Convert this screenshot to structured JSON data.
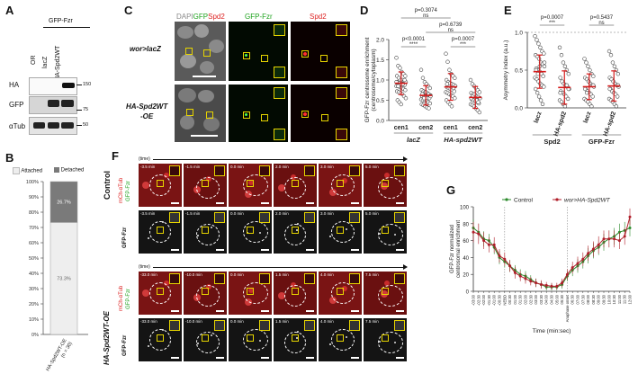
{
  "panels": {
    "A": {
      "label": "A",
      "group_header": "GFP-Fzr",
      "lanes": [
        "OR",
        "lacZ",
        "HA-Spd2WT"
      ],
      "rows": [
        "HA",
        "GFP",
        "αTub"
      ],
      "mw_markers": [
        "150",
        "75",
        "50"
      ]
    },
    "B": {
      "label": "B",
      "legend": [
        "Attached",
        "Detached"
      ],
      "xlabel": "HA-Spd2WT-OE\n(n = 30)",
      "xlabel_line1": "HA-Spd2WT-OE",
      "xlabel_line2": "(n = 30)",
      "yticks": [
        "0%",
        "10%",
        "20%",
        "30%",
        "40%",
        "50%",
        "60%",
        "70%",
        "80%",
        "90%",
        "100%"
      ],
      "colors": {
        "attached": "#eeeeee",
        "detached": "#7a7a7a"
      }
    },
    "C": {
      "label": "C",
      "header_merge_parts": [
        "DAPI",
        "GFP",
        "Spd2"
      ],
      "header_gfp": "GFP-Fzr",
      "header_spd2": "Spd2",
      "row1_label": "wor>lacZ",
      "row2_label_line1": "HA-Spd2WT",
      "row2_label_line2": "-OE"
    },
    "D": {
      "label": "D",
      "ylabel": "GFP-Fzr centrosome enrichment",
      "ylabel2": "(centrosome/cytoplasm)",
      "groups": [
        "lacZ",
        "HA-spd2WT"
      ],
      "comparisons": [
        {
          "text": "p=0.3074",
          "sig": "ns"
        },
        {
          "text": "p=0.6739",
          "sig": "ns"
        },
        {
          "text": "p<0.0001",
          "sig": "****"
        },
        {
          "text": "p=0.0007",
          "sig": "***"
        }
      ]
    },
    "E": {
      "label": "E",
      "ylabel": "Asymmetry index (a.u.)",
      "groups": [
        "Spd2",
        "GFP-Fzr"
      ],
      "comparisons": [
        {
          "text": "p=0.0007",
          "sig": "***"
        },
        {
          "text": "p=0.5437",
          "sig": "ns"
        }
      ]
    },
    "F": {
      "label": "F",
      "time_label": "(time)",
      "row_labels": [
        "Control",
        "HA-Spd2WT-OE"
      ],
      "channel_mch": "mCh-αTub",
      "channel_gfp": "GFP-Fzr",
      "channel_gfp_alone": "GFP-Fzr",
      "times_control": [
        "-3.5 min",
        "-1.5 min",
        "0.0 min",
        "2.0 min",
        "3.0 min",
        "5.0 min"
      ],
      "times_oe": [
        "-33.0 min",
        "-10.0 min",
        "0.0 min",
        "1.5 min",
        "4.0 min",
        "7.5 min"
      ]
    },
    "G": {
      "label": "G",
      "ylabel": "GFP-Fzr normalized",
      "ylabel2": "centrosomal enrichment",
      "xlabel": "Time (min:sec)",
      "legend": [
        "Control",
        "wor>HA-Spd2WT"
      ],
      "annotations": [
        "NEBD",
        "Anaphase onset"
      ]
    }
  },
  "chart_data": [
    {
      "id": "B",
      "type": "bar",
      "categories": [
        "HA-Spd2WT-OE\n(n = 30)"
      ],
      "series": [
        {
          "name": "Attached",
          "values": [
            73.3
          ]
        },
        {
          "name": "Detached",
          "values": [
            26.7
          ]
        }
      ],
      "stacked": true,
      "ylim": [
        0,
        100
      ],
      "data_labels": [
        "73.3%",
        "26.7%"
      ]
    },
    {
      "id": "D",
      "type": "scatter",
      "ylabel": "GFP-Fzr centrosome enrichment\n(centrosome/cytoplasm)",
      "ylim": [
        0,
        2.0
      ],
      "yticks": [
        "0.0",
        "0.5",
        "1.0",
        "1.5",
        "2.0"
      ],
      "categories": [
        "cen1",
        "cen2",
        "cen1",
        "cen2"
      ],
      "group_labels": [
        "lacZ",
        "HA-spd2WT"
      ],
      "means": [
        0.92,
        0.62,
        0.83,
        0.57
      ],
      "sd": [
        0.28,
        0.24,
        0.33,
        0.27
      ],
      "points": [
        [
          1.55,
          1.35,
          1.3,
          1.2,
          1.15,
          1.1,
          1.1,
          1.05,
          1.0,
          1.0,
          0.98,
          0.95,
          0.95,
          0.92,
          0.9,
          0.9,
          0.88,
          0.85,
          0.85,
          0.82,
          0.8,
          0.78,
          0.75,
          0.72,
          0.7,
          0.68,
          0.65,
          0.6,
          0.55,
          0.5,
          0.45,
          0.4,
          0.9,
          1.0,
          0.95,
          0.85
        ],
        [
          1.25,
          1.05,
          0.95,
          0.9,
          0.85,
          0.8,
          0.75,
          0.72,
          0.7,
          0.68,
          0.65,
          0.62,
          0.6,
          0.6,
          0.58,
          0.55,
          0.55,
          0.52,
          0.5,
          0.5,
          0.48,
          0.45,
          0.42,
          0.4,
          0.38,
          0.35,
          0.32,
          0.3,
          0.6,
          0.65,
          0.55,
          0.7
        ],
        [
          1.65,
          1.45,
          1.25,
          1.15,
          1.1,
          1.05,
          1.0,
          0.95,
          0.92,
          0.9,
          0.88,
          0.85,
          0.82,
          0.8,
          0.78,
          0.75,
          0.72,
          0.7,
          0.68,
          0.65,
          0.62,
          0.6,
          0.55,
          0.5,
          0.45,
          0.4,
          0.35,
          0.8,
          0.85,
          0.9
        ],
        [
          1.0,
          0.9,
          0.85,
          0.8,
          0.75,
          0.7,
          0.68,
          0.65,
          0.62,
          0.6,
          0.58,
          0.55,
          0.52,
          0.5,
          0.48,
          0.45,
          0.42,
          0.4,
          0.38,
          0.35,
          0.3,
          0.25,
          0.2,
          0.55,
          0.6,
          0.65,
          0.5,
          0.45
        ]
      ]
    },
    {
      "id": "E",
      "type": "scatter",
      "ylabel": "Asymmetry index (a.u.)",
      "ylim": [
        0,
        1.0
      ],
      "yticks": [
        "0.0",
        "0.5",
        "1.0"
      ],
      "categories": [
        "lacz",
        "HA-spd2",
        "lacz",
        "HA-spd2"
      ],
      "group_labels": [
        "Spd2",
        "GFP-Fzr"
      ],
      "means": [
        0.48,
        0.27,
        0.28,
        0.29
      ],
      "sd": [
        0.22,
        0.22,
        0.17,
        0.2
      ],
      "points": [
        [
          0.95,
          0.9,
          0.85,
          0.8,
          0.75,
          0.72,
          0.7,
          0.68,
          0.65,
          0.6,
          0.58,
          0.55,
          0.52,
          0.5,
          0.48,
          0.45,
          0.42,
          0.4,
          0.38,
          0.35,
          0.32,
          0.3,
          0.28,
          0.25,
          0.2,
          0.15,
          0.1,
          0.05,
          0.6,
          0.5,
          0.45,
          0.55
        ],
        [
          0.8,
          0.7,
          0.6,
          0.55,
          0.5,
          0.45,
          0.4,
          0.35,
          0.32,
          0.3,
          0.28,
          0.25,
          0.22,
          0.2,
          0.18,
          0.15,
          0.12,
          0.1,
          0.08,
          0.05,
          0.02,
          0.3,
          0.25,
          0.2
        ],
        [
          0.65,
          0.6,
          0.55,
          0.5,
          0.45,
          0.42,
          0.4,
          0.38,
          0.35,
          0.32,
          0.3,
          0.28,
          0.25,
          0.22,
          0.2,
          0.18,
          0.15,
          0.12,
          0.1,
          0.08,
          0.05,
          0.02,
          0.3,
          0.25,
          0.2,
          0.35
        ],
        [
          0.75,
          0.7,
          0.6,
          0.55,
          0.5,
          0.45,
          0.4,
          0.38,
          0.35,
          0.32,
          0.3,
          0.28,
          0.25,
          0.22,
          0.2,
          0.18,
          0.15,
          0.12,
          0.1,
          0.08,
          0.05,
          0.02,
          0.3,
          0.25
        ]
      ]
    },
    {
      "id": "G",
      "type": "line",
      "xlabel": "Time (min:sec)",
      "ylabel": "GFP-Fzr normalized\ncentrosomal enrichment",
      "ylim": [
        0,
        100
      ],
      "yticks": [
        "0",
        "20",
        "40",
        "60",
        "80",
        "100"
      ],
      "x": [
        "-03:00",
        "-02:30",
        "-02:00",
        "-01:30",
        "-01:00",
        "-00:30",
        "NEBD",
        "00:30",
        "01:00",
        "01:30",
        "02:00",
        "02:30",
        "03:00",
        "03:30",
        "04:00",
        "04:30",
        "05:00",
        "05:30",
        "Anaphase onset",
        "06:30",
        "07:00",
        "07:30",
        "08:00",
        "08:30",
        "09:00",
        "09:30",
        "10:00",
        "10:30",
        "11:00",
        "11:30",
        "12:00"
      ],
      "series": [
        {
          "name": "Control",
          "color": "#2a8a2a",
          "values": [
            75,
            70,
            62,
            60,
            52,
            40,
            35,
            30,
            25,
            20,
            18,
            14,
            10,
            8,
            5,
            5,
            5,
            8,
            18,
            25,
            30,
            35,
            42,
            48,
            52,
            58,
            62,
            65,
            70,
            72,
            75
          ],
          "err": [
            10,
            10,
            9,
            8,
            8,
            8,
            7,
            7,
            6,
            6,
            6,
            5,
            5,
            4,
            4,
            4,
            4,
            5,
            6,
            7,
            8,
            8,
            9,
            9,
            9,
            10,
            10,
            10,
            10,
            10,
            10
          ]
        },
        {
          "name": "wor>HA-Spd2WT",
          "color": "#b01e2a",
          "values": [
            70,
            68,
            60,
            55,
            55,
            42,
            38,
            30,
            22,
            18,
            15,
            12,
            10,
            8,
            7,
            6,
            6,
            10,
            20,
            28,
            33,
            38,
            45,
            50,
            55,
            62,
            62,
            62,
            60,
            65,
            88
          ],
          "err": [
            12,
            12,
            10,
            9,
            9,
            8,
            8,
            7,
            7,
            6,
            6,
            5,
            5,
            5,
            4,
            4,
            4,
            5,
            6,
            7,
            8,
            8,
            9,
            9,
            10,
            10,
            10,
            10,
            10,
            10,
            10
          ]
        }
      ],
      "annotations": [
        "NEBD",
        "Anaphase onset"
      ]
    }
  ]
}
